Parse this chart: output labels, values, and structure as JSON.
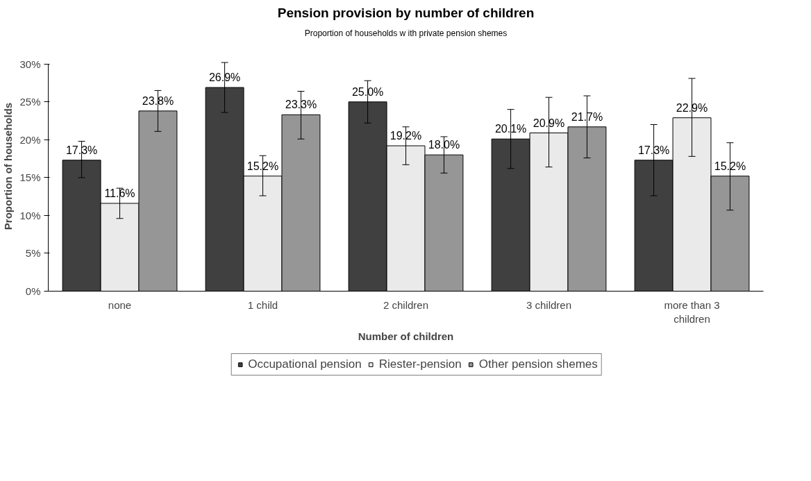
{
  "chart_data": {
    "type": "bar",
    "title": "Pension provision by number of children",
    "subtitle": "Proportion of households w ith private pension shemes",
    "xlabel": "Number of children",
    "ylabel": "Proportion of households",
    "categories": [
      "none",
      "1 child",
      "2 children",
      "3 children",
      "more than 3 children"
    ],
    "series": [
      {
        "name": "Occupational pension",
        "color": "#404040",
        "values": [
          17.3,
          26.9,
          25.0,
          20.1,
          17.3
        ],
        "value_labels": [
          "17.3%",
          "26.9%",
          "25.0%",
          "20.1%",
          "17.3%"
        ],
        "errors": [
          [
            15.0,
            19.8
          ],
          [
            23.6,
            30.2
          ],
          [
            22.2,
            27.8
          ],
          [
            16.2,
            24.0
          ],
          [
            12.6,
            22.0
          ]
        ]
      },
      {
        "name": "Riester-pension",
        "color": "#eaeaea",
        "values": [
          11.6,
          15.2,
          19.2,
          20.9,
          22.9
        ],
        "value_labels": [
          "11.6%",
          "15.2%",
          "19.2%",
          "20.9%",
          "22.9%"
        ],
        "errors": [
          [
            9.6,
            13.6
          ],
          [
            12.6,
            17.9
          ],
          [
            16.7,
            21.7
          ],
          [
            16.4,
            25.6
          ],
          [
            17.8,
            28.1
          ]
        ]
      },
      {
        "name": "Other pension shemes",
        "color": "#969696",
        "values": [
          23.8,
          23.3,
          18.0,
          21.7,
          15.2
        ],
        "value_labels": [
          "23.8%",
          "23.3%",
          "18.0%",
          "21.7%",
          "15.2%"
        ],
        "errors": [
          [
            21.1,
            26.5
          ],
          [
            20.1,
            26.4
          ],
          [
            15.6,
            20.4
          ],
          [
            17.6,
            25.8
          ],
          [
            10.7,
            19.6
          ]
        ]
      }
    ],
    "ylim": [
      0,
      30
    ],
    "yticks": [
      {
        "value": 0,
        "label": "0%"
      },
      {
        "value": 5,
        "label": "5%"
      },
      {
        "value": 10,
        "label": "10%"
      },
      {
        "value": 15,
        "label": "15%"
      },
      {
        "value": 20,
        "label": "20%"
      },
      {
        "value": 25,
        "label": "25%"
      },
      {
        "value": 30,
        "label": "30%"
      }
    ],
    "legend": "bottom"
  }
}
